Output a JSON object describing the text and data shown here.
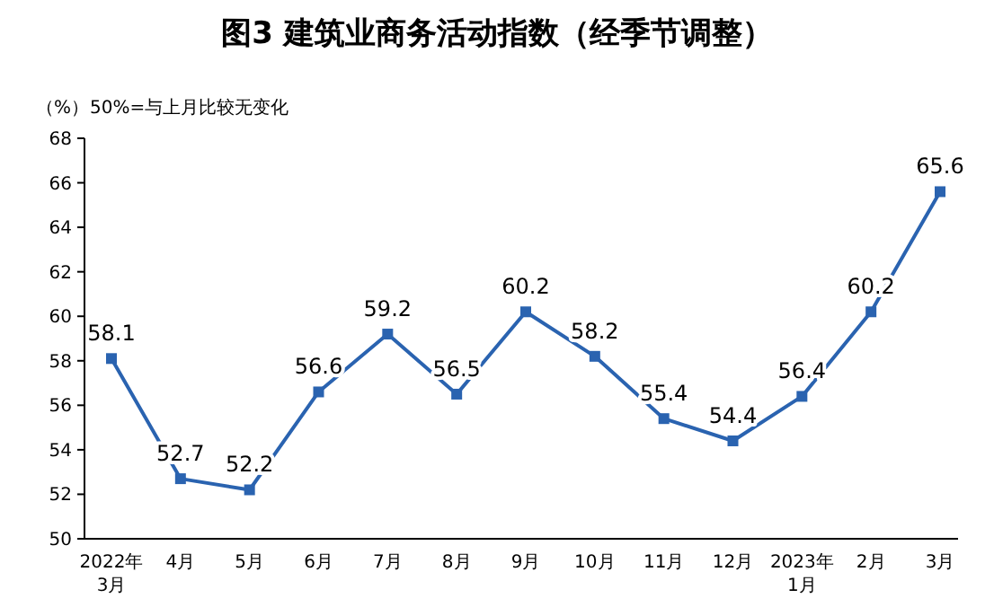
{
  "chart_data": {
    "type": "line",
    "title": "图3  建筑业商务活动指数（经季节调整）",
    "ylabel": "（%）",
    "annotations": [
      "50%=与上月比较无变化"
    ],
    "categories": [
      "2022年\n3月",
      "4月",
      "5月",
      "6月",
      "7月",
      "8月",
      "9月",
      "10月",
      "11月",
      "12月",
      "2023年\n1月",
      "2月",
      "3月"
    ],
    "series": [
      {
        "color": "#2a63b0",
        "values": [
          58.1,
          52.7,
          52.2,
          56.6,
          59.2,
          56.5,
          60.2,
          58.2,
          55.4,
          54.4,
          56.4,
          60.2,
          65.6
        ]
      }
    ],
    "ylim": [
      50,
      68
    ],
    "yticks": [
      50,
      52,
      54,
      56,
      58,
      60,
      62,
      64,
      66,
      68
    ],
    "grid": false,
    "marker": "square",
    "line_style": "solid",
    "data_labels": true
  }
}
